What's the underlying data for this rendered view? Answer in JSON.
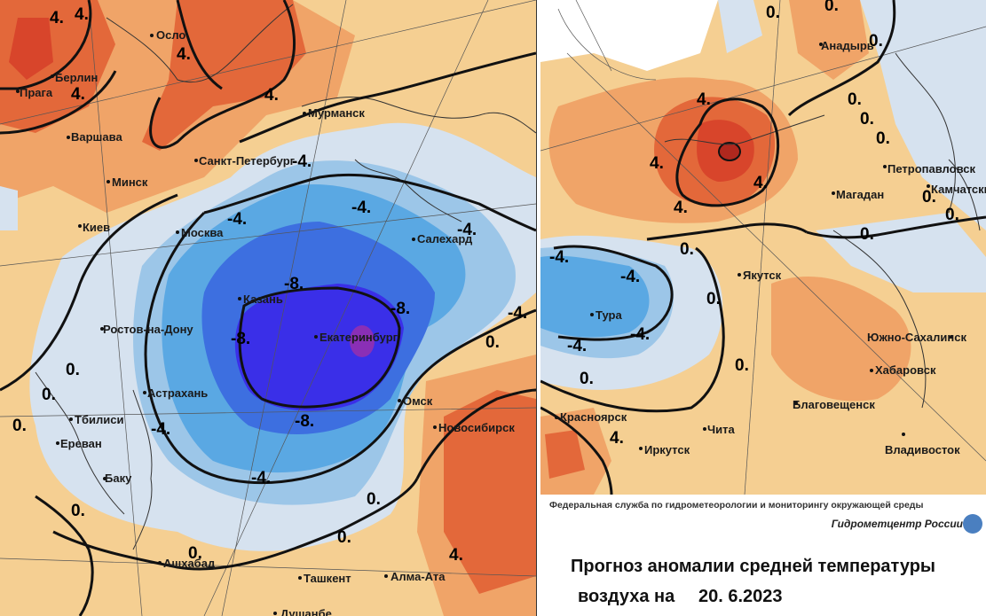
{
  "left_map": {
    "cities": [
      {
        "id": "oslo",
        "name": "Осло"
      },
      {
        "id": "berlin",
        "name": "Берлин"
      },
      {
        "id": "praga",
        "name": "Прага"
      },
      {
        "id": "varshava",
        "name": "Варшава"
      },
      {
        "id": "minsk",
        "name": "Минск"
      },
      {
        "id": "kiev",
        "name": "Киев"
      },
      {
        "id": "murmansk",
        "name": "Мурманск"
      },
      {
        "id": "spb",
        "name": "Санкт-Петербург"
      },
      {
        "id": "moskva",
        "name": "Москва"
      },
      {
        "id": "kazan",
        "name": "Казань"
      },
      {
        "id": "salekhard",
        "name": "Салехард"
      },
      {
        "id": "ekb",
        "name": "Екатеринбург"
      },
      {
        "id": "rostov",
        "name": "Ростов-на-Дону"
      },
      {
        "id": "astrakhan",
        "name": "Астрахань"
      },
      {
        "id": "omsk",
        "name": "Омск"
      },
      {
        "id": "novosibirsk",
        "name": "Новосибирск"
      },
      {
        "id": "tbilisi",
        "name": "Тбилиси"
      },
      {
        "id": "erevan",
        "name": "Ереван"
      },
      {
        "id": "baku",
        "name": "Баку"
      },
      {
        "id": "ashkhabad",
        "name": "Ашхабад"
      },
      {
        "id": "tashkent",
        "name": "Ташкент"
      },
      {
        "id": "almaata",
        "name": "Алма-Ата"
      },
      {
        "id": "dushanbe",
        "name": "Душанбе"
      }
    ],
    "isolines": [
      {
        "id": "a",
        "text": "4."
      },
      {
        "id": "b",
        "text": "4."
      },
      {
        "id": "c",
        "text": "4."
      },
      {
        "id": "d",
        "text": "4."
      },
      {
        "id": "e",
        "text": "4."
      },
      {
        "id": "f",
        "text": "-4."
      },
      {
        "id": "g",
        "text": "-4."
      },
      {
        "id": "h",
        "text": "-4."
      },
      {
        "id": "i",
        "text": "-4."
      },
      {
        "id": "j",
        "text": "-4."
      },
      {
        "id": "k",
        "text": "-4."
      },
      {
        "id": "l",
        "text": "-4."
      },
      {
        "id": "m",
        "text": "-8."
      },
      {
        "id": "n",
        "text": "-8."
      },
      {
        "id": "o",
        "text": "-8."
      },
      {
        "id": "p",
        "text": "-8."
      },
      {
        "id": "q",
        "text": "0."
      },
      {
        "id": "r",
        "text": "0."
      },
      {
        "id": "s",
        "text": "0."
      },
      {
        "id": "t",
        "text": "0."
      },
      {
        "id": "u",
        "text": "0."
      },
      {
        "id": "v",
        "text": "0."
      },
      {
        "id": "w",
        "text": "0."
      },
      {
        "id": "x",
        "text": "0."
      },
      {
        "id": "y",
        "text": "4."
      }
    ]
  },
  "right_map": {
    "cities": [
      {
        "id": "anadyr",
        "name": "Анадырь"
      },
      {
        "id": "petropavlovsk",
        "name": "Петропавловск"
      },
      {
        "id": "kamchatsky",
        "name": "Камчатский"
      },
      {
        "id": "magadan",
        "name": "Магадан"
      },
      {
        "id": "yakutsk",
        "name": "Якутск"
      },
      {
        "id": "tura",
        "name": "Тура"
      },
      {
        "id": "yuzhno",
        "name": "Южно-Сахалинск"
      },
      {
        "id": "khabarovsk",
        "name": "Хабаровск"
      },
      {
        "id": "blago",
        "name": "Благовещенск"
      },
      {
        "id": "krasnoyarsk",
        "name": "Красноярск"
      },
      {
        "id": "chita",
        "name": "Чита"
      },
      {
        "id": "irkutsk",
        "name": "Иркутск"
      },
      {
        "id": "vladivostok",
        "name": "Владивосток"
      }
    ],
    "isolines": [
      {
        "id": "a",
        "text": "0."
      },
      {
        "id": "b",
        "text": "0."
      },
      {
        "id": "c",
        "text": "0."
      },
      {
        "id": "d",
        "text": "0."
      },
      {
        "id": "e",
        "text": "0."
      },
      {
        "id": "f",
        "text": "0."
      },
      {
        "id": "g",
        "text": "0."
      },
      {
        "id": "h",
        "text": "0."
      },
      {
        "id": "i",
        "text": "4."
      },
      {
        "id": "j",
        "text": "4."
      },
      {
        "id": "k",
        "text": "4."
      },
      {
        "id": "l",
        "text": "4."
      },
      {
        "id": "m",
        "text": "4."
      },
      {
        "id": "n",
        "text": "-4."
      },
      {
        "id": "o",
        "text": "-4."
      },
      {
        "id": "p",
        "text": "-4."
      },
      {
        "id": "q",
        "text": "-4."
      },
      {
        "id": "r",
        "text": "0."
      },
      {
        "id": "s",
        "text": "0."
      },
      {
        "id": "t",
        "text": "0."
      },
      {
        "id": "u",
        "text": "0."
      },
      {
        "id": "v",
        "text": "0."
      }
    ]
  },
  "footer": {
    "agency": "Федеральная служба по гидрометеорологии и мониторингу окружающей среды",
    "center": "Гидрометцентр России",
    "title_line1": "Прогноз аномалии средней температуры",
    "title_line2": "воздуха на",
    "date": "20. 6.2023"
  },
  "colors": {
    "warm_light": "#f5cf92",
    "warm_mid": "#f0a468",
    "warm_strong": "#e3683a",
    "warm_extreme": "#d8452b",
    "warm_peak": "#b0281e",
    "neutral_cool": "#d6e2ef",
    "cool_light": "#9cc6e8",
    "cool_mid": "#5aa8e3",
    "cool_strong": "#3d6fe0",
    "cool_deep": "#3a2fe8",
    "cool_peak": "#8a2fb6"
  }
}
